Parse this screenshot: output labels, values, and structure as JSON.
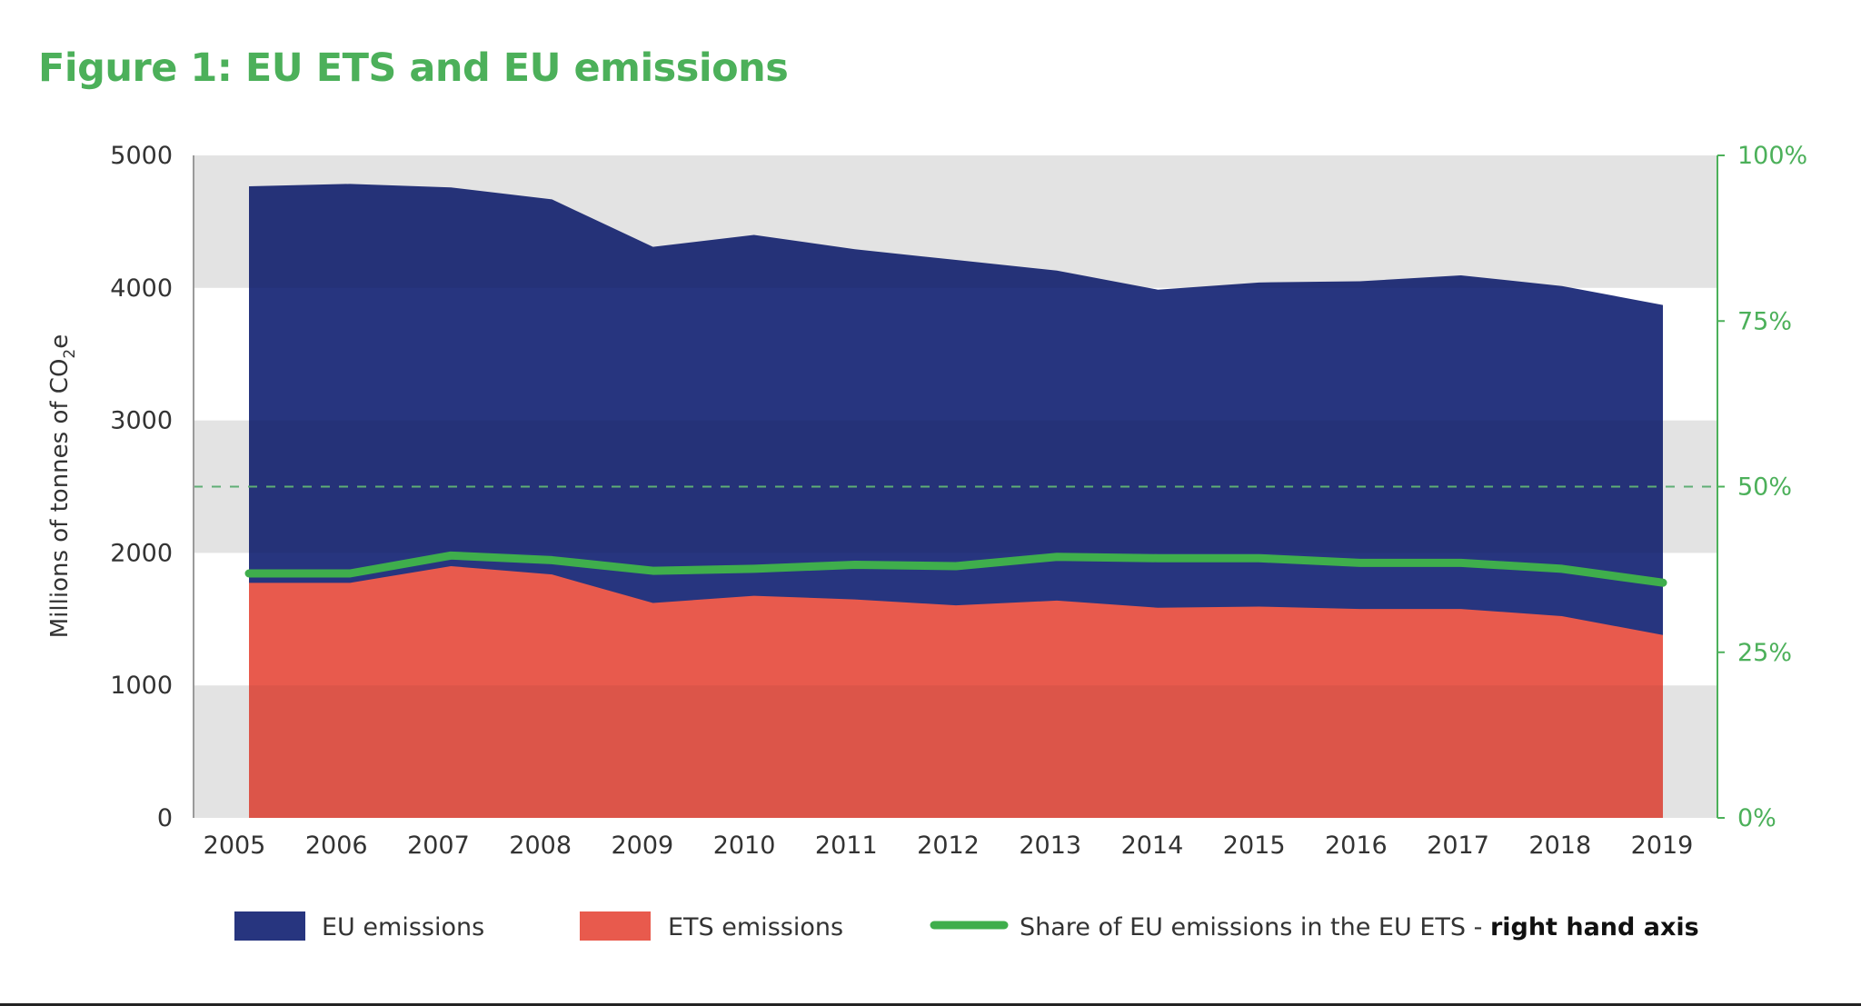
{
  "chart_data": {
    "type": "area",
    "title": "Figure 1: EU ETS and EU emissions",
    "ylabel": "Millions of tonnes of CO2e",
    "ylabel_main": "Millions of tonnes of CO",
    "ylabel_sub": "2",
    "ylabel_tail": "e",
    "x": [
      2005,
      2006,
      2007,
      2008,
      2009,
      2010,
      2011,
      2012,
      2013,
      2014,
      2015,
      2016,
      2017,
      2018,
      2019
    ],
    "ylim": [
      0,
      5000
    ],
    "yticks": [
      "0",
      "1000",
      "2000",
      "3000",
      "4000",
      "5000"
    ],
    "y2lim": [
      0,
      100
    ],
    "y2ticks": [
      "0%",
      "25%",
      "50%",
      "75%",
      "100%"
    ],
    "reference_line_y2": 50,
    "grid": "alternating horizontal bands",
    "legend_position": "bottom",
    "series": [
      {
        "name": "EU emissions",
        "kind": "area",
        "axis": "left",
        "color": "#27357f",
        "values": [
          4767,
          4785,
          4758,
          4668,
          4310,
          4400,
          4292,
          4211,
          4131,
          3987,
          4041,
          4050,
          4095,
          4014,
          3871
        ]
      },
      {
        "name": "ETS emissions",
        "kind": "area",
        "axis": "left",
        "color": "#e85a4d",
        "values": [
          1774,
          1774,
          1900,
          1837,
          1622,
          1676,
          1649,
          1604,
          1640,
          1586,
          1595,
          1577,
          1577,
          1523,
          1380
        ]
      },
      {
        "name": "Share of EU emissions in the EU ETS - ",
        "name_bold": "right hand axis",
        "kind": "line",
        "axis": "right",
        "color": "#3fae4c",
        "values": [
          36.9,
          36.9,
          39.6,
          38.9,
          37.3,
          37.6,
          38.2,
          38.0,
          39.4,
          39.2,
          39.2,
          38.5,
          38.5,
          37.6,
          35.5
        ]
      }
    ]
  }
}
